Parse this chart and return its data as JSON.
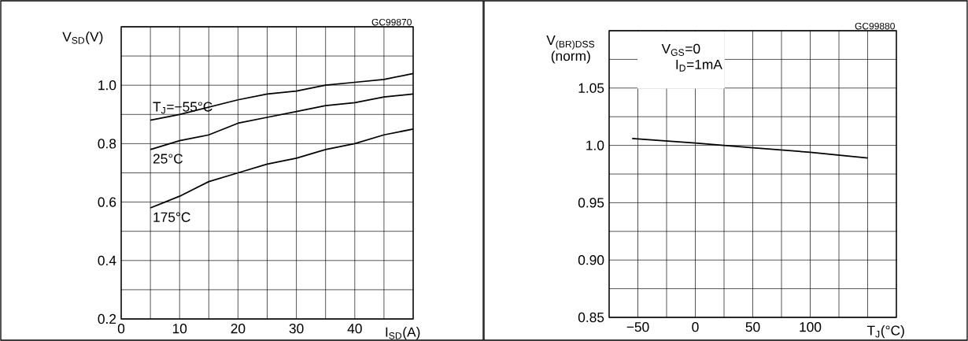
{
  "chart_data": [
    {
      "type": "line",
      "xlabel": "I$_{SD}$(A)",
      "ylabel": "V$_{SD}$(V)",
      "annotations": [
        "GC99870"
      ],
      "xlim": [
        0,
        50
      ],
      "ylim": [
        0.2,
        1.2
      ],
      "xticks": [
        0,
        {
          "value": 5,
          "label": null
        },
        10,
        {
          "value": 15,
          "label": null
        },
        20,
        {
          "value": 25,
          "label": null
        },
        30,
        {
          "value": 35,
          "label": null
        },
        40,
        {
          "value": 45,
          "label": null
        },
        {
          "value": 50,
          "label": null
        }
      ],
      "yticks": [
        0.2,
        {
          "value": 0.3,
          "label": null
        },
        0.4,
        {
          "value": 0.5,
          "label": null
        },
        0.6,
        {
          "value": 0.7,
          "label": null
        },
        0.8,
        {
          "value": 0.9,
          "label": null
        },
        {
          "value": 1.0,
          "label": "1.0"
        },
        {
          "value": 1.1,
          "label": null
        },
        {
          "value": 1.2,
          "label": null
        }
      ],
      "grid": true,
      "marker": "none",
      "line_style": "solid",
      "series": [
        {
          "name": "T$_{J}$=−55°C",
          "color": "#000000",
          "x": [
            5,
            10,
            20,
            25,
            30,
            35,
            40,
            45,
            50
          ],
          "values": [
            0.88,
            0.9,
            0.95,
            0.97,
            0.98,
            1.0,
            1.01,
            1.02,
            1.04
          ]
        },
        {
          "name": "25°C",
          "color": "#000000",
          "x": [
            5,
            10,
            15,
            20,
            25,
            30,
            35,
            40,
            45,
            50
          ],
          "values": [
            0.78,
            0.81,
            0.83,
            0.87,
            0.89,
            0.91,
            0.93,
            0.94,
            0.96,
            0.97
          ]
        },
        {
          "name": "175°C",
          "color": "#000000",
          "x": [
            5,
            7.5,
            10,
            15,
            20,
            25,
            30,
            35,
            40,
            45,
            50
          ],
          "values": [
            0.58,
            0.6,
            0.62,
            0.67,
            0.7,
            0.73,
            0.75,
            0.78,
            0.8,
            0.83,
            0.85
          ]
        }
      ]
    },
    {
      "type": "line",
      "xlabel": "T$_{J}$(°C)",
      "ylabel": "V$_{(BR)DSS}$ (norm)",
      "annotations": [
        "GC99880",
        "V$_{GS}$=0",
        "I$_{D}$=1mA"
      ],
      "xlim": [
        -75,
        175
      ],
      "ylim": [
        0.85,
        1.1
      ],
      "xticks": [
        {
          "value": -75,
          "label": null
        },
        {
          "value": -50,
          "label": "−50"
        },
        {
          "value": -25,
          "label": null
        },
        0,
        {
          "value": 25,
          "label": null
        },
        50,
        {
          "value": 75,
          "label": null
        },
        100,
        {
          "value": 125,
          "label": null
        },
        {
          "value": 150,
          "label": null
        },
        {
          "value": 175,
          "label": null
        }
      ],
      "yticks": [
        0.85,
        {
          "value": 0.875,
          "label": null
        },
        {
          "value": 0.9,
          "label": "0.90"
        },
        {
          "value": 0.925,
          "label": null
        },
        0.95,
        {
          "value": 0.975,
          "label": null
        },
        {
          "value": 1.0,
          "label": "1.0"
        },
        {
          "value": 1.025,
          "label": null
        },
        1.05,
        {
          "value": 1.075,
          "label": null
        },
        {
          "value": 1.1,
          "label": null
        }
      ],
      "grid": true,
      "marker": "none",
      "line_style": "solid",
      "series": [
        {
          "color": "#000000",
          "x": [
            -55,
            0,
            25,
            50,
            100,
            150
          ],
          "values": [
            1.006,
            1.002,
            1.0,
            0.998,
            0.994,
            0.989
          ]
        }
      ]
    }
  ]
}
